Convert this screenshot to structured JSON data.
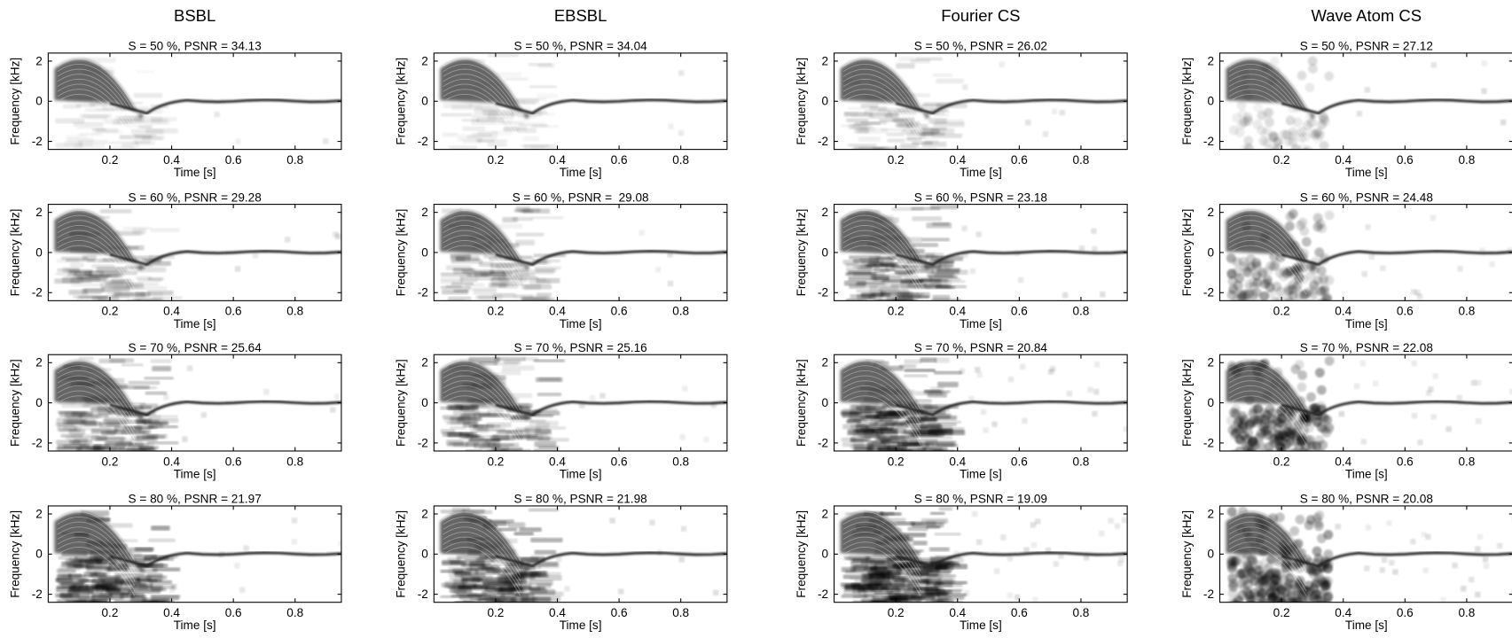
{
  "columns": [
    "BSBL",
    "EBSBL",
    "Fourier CS",
    "Wave Atom CS"
  ],
  "chart_data": [
    {
      "type": "spectrogram",
      "title": "S = 50 %, PSNR = 34.13",
      "xlabel": "Time [s]",
      "ylabel": "Frequency [kHz]",
      "xlim": [
        0,
        0.95
      ],
      "ylim": [
        -2.4,
        2.4
      ],
      "xticks": [
        0.2,
        0.4,
        0.6,
        0.8
      ],
      "yticks": [
        -2,
        0,
        2
      ]
    },
    {
      "type": "spectrogram",
      "title": "S = 50 %, PSNR = 34.04",
      "xlabel": "Time [s]",
      "ylabel": "Frequency [kHz]",
      "xlim": [
        0,
        0.95
      ],
      "ylim": [
        -2.4,
        2.4
      ],
      "xticks": [
        0.2,
        0.4,
        0.6,
        0.8
      ],
      "yticks": [
        -2,
        0,
        2
      ]
    },
    {
      "type": "spectrogram",
      "title": "S = 50 %, PSNR = 26.02",
      "xlabel": "Time [s]",
      "ylabel": "Frequency [kHz]",
      "xlim": [
        0,
        0.95
      ],
      "ylim": [
        -2.4,
        2.4
      ],
      "xticks": [
        0.2,
        0.4,
        0.6,
        0.8
      ],
      "yticks": [
        -2,
        0,
        2
      ]
    },
    {
      "type": "spectrogram",
      "title": "S = 50 %, PSNR = 27.12",
      "xlabel": "Time [s]",
      "ylabel": "Frequency [kHz]",
      "xlim": [
        0,
        0.95
      ],
      "ylim": [
        -2.4,
        2.4
      ],
      "xticks": [
        0.2,
        0.4,
        0.6,
        0.8
      ],
      "yticks": [
        -2,
        0,
        2
      ]
    },
    {
      "type": "spectrogram",
      "title": "S = 60 %, PSNR = 29.28",
      "xlabel": "Time [s]",
      "ylabel": "Frequency [kHz]",
      "xlim": [
        0,
        0.95
      ],
      "ylim": [
        -2.4,
        2.4
      ],
      "xticks": [
        0.2,
        0.4,
        0.6,
        0.8
      ],
      "yticks": [
        -2,
        0,
        2
      ]
    },
    {
      "type": "spectrogram",
      "title": "S = 60 %, PSNR =  29.08",
      "xlabel": "Time [s]",
      "ylabel": "Frequency [kHz]",
      "xlim": [
        0,
        0.95
      ],
      "ylim": [
        -2.4,
        2.4
      ],
      "xticks": [
        0.2,
        0.4,
        0.6,
        0.8
      ],
      "yticks": [
        -2,
        0,
        2
      ]
    },
    {
      "type": "spectrogram",
      "title": "S = 60 %, PSNR = 23.18",
      "xlabel": "Time [s]",
      "ylabel": "Frequency [kHz]",
      "xlim": [
        0,
        0.95
      ],
      "ylim": [
        -2.4,
        2.4
      ],
      "xticks": [
        0.2,
        0.4,
        0.6,
        0.8
      ],
      "yticks": [
        -2,
        0,
        2
      ]
    },
    {
      "type": "spectrogram",
      "title": "S = 60 %, PSNR = 24.48",
      "xlabel": "Time [s]",
      "ylabel": "Frequency [kHz]",
      "xlim": [
        0,
        0.95
      ],
      "ylim": [
        -2.4,
        2.4
      ],
      "xticks": [
        0.2,
        0.4,
        0.6,
        0.8
      ],
      "yticks": [
        -2,
        0,
        2
      ]
    },
    {
      "type": "spectrogram",
      "title": "S = 70 %, PSNR = 25.64",
      "xlabel": "Time [s]",
      "ylabel": "Frequency [kHz]",
      "xlim": [
        0,
        0.95
      ],
      "ylim": [
        -2.4,
        2.4
      ],
      "xticks": [
        0.2,
        0.4,
        0.6,
        0.8
      ],
      "yticks": [
        -2,
        0,
        2
      ]
    },
    {
      "type": "spectrogram",
      "title": "S = 70 %, PSNR = 25.16",
      "xlabel": "Time [s]",
      "ylabel": "Frequency [kHz]",
      "xlim": [
        0,
        0.95
      ],
      "ylim": [
        -2.4,
        2.4
      ],
      "xticks": [
        0.2,
        0.4,
        0.6,
        0.8
      ],
      "yticks": [
        -2,
        0,
        2
      ]
    },
    {
      "type": "spectrogram",
      "title": "S = 70 %, PSNR = 20.84",
      "xlabel": "Time [s]",
      "ylabel": "Frequency [kHz]",
      "xlim": [
        0,
        0.95
      ],
      "ylim": [
        -2.4,
        2.4
      ],
      "xticks": [
        0.2,
        0.4,
        0.6,
        0.8
      ],
      "yticks": [
        -2,
        0,
        2
      ]
    },
    {
      "type": "spectrogram",
      "title": "S = 70 %, PSNR = 22.08",
      "xlabel": "Time [s]",
      "ylabel": "Frequency [kHz]",
      "xlim": [
        0,
        0.95
      ],
      "ylim": [
        -2.4,
        2.4
      ],
      "xticks": [
        0.2,
        0.4,
        0.6,
        0.8
      ],
      "yticks": [
        -2,
        0,
        2
      ]
    },
    {
      "type": "spectrogram",
      "title": "S = 80 %, PSNR = 21.97",
      "xlabel": "Time [s]",
      "ylabel": "Frequency [kHz]",
      "xlim": [
        0,
        0.95
      ],
      "ylim": [
        -2.4,
        2.4
      ],
      "xticks": [
        0.2,
        0.4,
        0.6,
        0.8
      ],
      "yticks": [
        -2,
        0,
        2
      ]
    },
    {
      "type": "spectrogram",
      "title": "S = 80 %, PSNR = 21.98",
      "xlabel": "Time [s]",
      "ylabel": "Frequency [kHz]",
      "xlim": [
        0,
        0.95
      ],
      "ylim": [
        -2.4,
        2.4
      ],
      "xticks": [
        0.2,
        0.4,
        0.6,
        0.8
      ],
      "yticks": [
        -2,
        0,
        2
      ]
    },
    {
      "type": "spectrogram",
      "title": "S = 80 %, PSNR = 19.09",
      "xlabel": "Time [s]",
      "ylabel": "Frequency [kHz]",
      "xlim": [
        0,
        0.95
      ],
      "ylim": [
        -2.4,
        2.4
      ],
      "xticks": [
        0.2,
        0.4,
        0.6,
        0.8
      ],
      "yticks": [
        -2,
        0,
        2
      ]
    },
    {
      "type": "spectrogram",
      "title": "S = 80 %, PSNR = 20.08",
      "xlabel": "Time [s]",
      "ylabel": "Frequency [kHz]",
      "xlim": [
        0,
        0.95
      ],
      "ylim": [
        -2.4,
        2.4
      ],
      "xticks": [
        0.2,
        0.4,
        0.6,
        0.8
      ],
      "yticks": [
        -2,
        0,
        2
      ]
    }
  ]
}
